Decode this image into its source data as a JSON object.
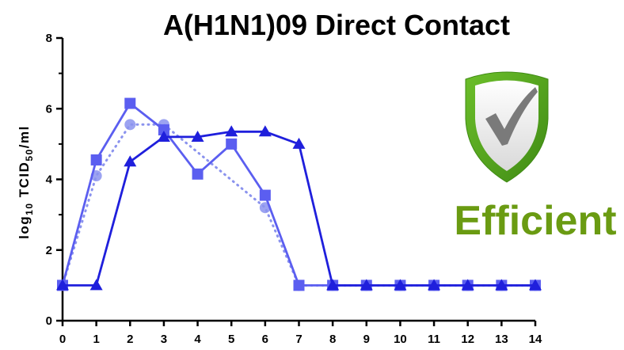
{
  "chart_data": {
    "type": "line",
    "title": "A(H1N1)09 Direct Contact",
    "ylabel_parts": [
      "log",
      "10",
      " TCID",
      "50",
      "/ml"
    ],
    "xlabel": "",
    "x": [
      0,
      1,
      2,
      3,
      4,
      5,
      6,
      7,
      8,
      9,
      10,
      11,
      12,
      13,
      14
    ],
    "xlim": [
      0,
      14
    ],
    "ylim": [
      0,
      8
    ],
    "y_ticks": [
      0,
      2,
      4,
      6,
      8
    ],
    "series": [
      {
        "marker": "circle",
        "line_style": "dotted",
        "color": "#8b93ee",
        "values": [
          1.0,
          4.1,
          5.55,
          5.55,
          null,
          null,
          3.2,
          1.0,
          1.0,
          1.0,
          1.0,
          1.0,
          1.0,
          1.0,
          1.0
        ]
      },
      {
        "marker": "square",
        "line_style": "solid",
        "color": "#5b5ef0",
        "values": [
          1.0,
          4.55,
          6.15,
          5.4,
          4.15,
          5.0,
          3.55,
          1.0,
          1.0,
          1.0,
          1.0,
          1.0,
          1.0,
          1.0,
          1.0
        ]
      },
      {
        "marker": "triangle",
        "line_style": "solid",
        "color": "#1f1fdc",
        "values": [
          1.0,
          1.0,
          4.5,
          5.2,
          5.2,
          5.35,
          5.35,
          5.0,
          1.0,
          1.0,
          1.0,
          1.0,
          1.0,
          1.0,
          1.0
        ]
      }
    ],
    "grid": false,
    "legend": "none"
  },
  "annotation": {
    "text": "Efficient",
    "color": "#6a9b12",
    "icon": "shield-checkmark-icon",
    "icon_colors": {
      "shield": "#6cbf2a",
      "shield_dark": "#3f8a14",
      "inner": "#f4f4f4",
      "check": "#7a7a7a"
    }
  }
}
